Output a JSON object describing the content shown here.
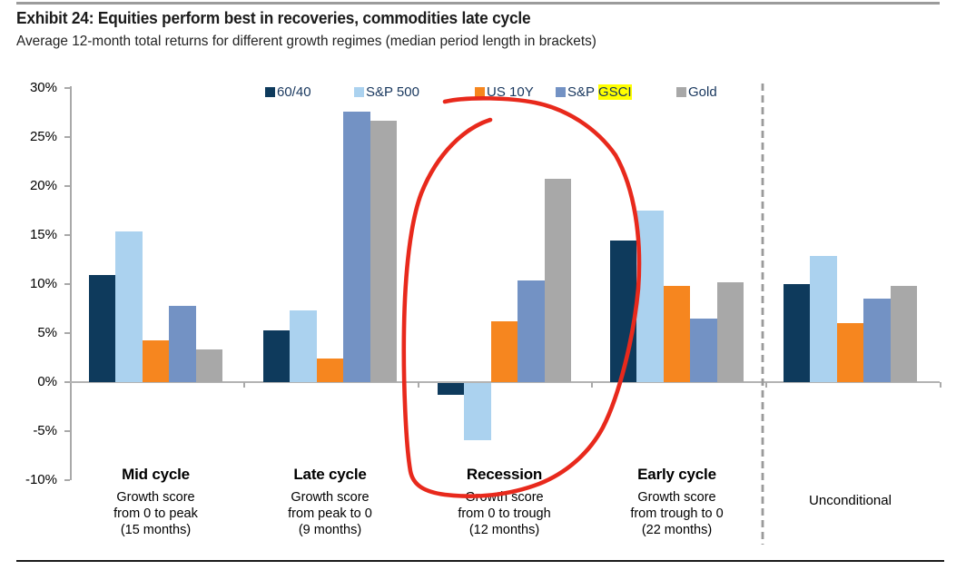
{
  "exhibit": {
    "title": "Exhibit 24: Equities perform best in recoveries, commodities late cycle",
    "subtitle": "Average 12-month total returns for different growth regimes (median period length in brackets)"
  },
  "chart_data": {
    "type": "bar",
    "title": "Exhibit 24: Equities perform best in recoveries, commodities late cycle",
    "subtitle": "Average 12-month total returns for different growth regimes (median period length in brackets)",
    "xlabel": "",
    "ylabel": "",
    "ylim": [
      -10,
      30
    ],
    "grid": false,
    "legend_position": "top",
    "yticks": [
      30,
      25,
      20,
      15,
      10,
      5,
      0,
      -5,
      -10
    ],
    "ytick_labels": [
      "30%",
      "25%",
      "20%",
      "15%",
      "10%",
      "5%",
      "0%",
      "-5%",
      "-10%"
    ],
    "categories": [
      {
        "name": "Mid cycle",
        "sublabels": [
          "Growth score",
          "from 0 to peak",
          "(15 months)"
        ]
      },
      {
        "name": "Late cycle",
        "sublabels": [
          "Growth score",
          "from peak to 0",
          "(9 months)"
        ]
      },
      {
        "name": "Recession",
        "sublabels": [
          "Growth score",
          "from 0 to trough",
          "(12 months)"
        ]
      },
      {
        "name": "Early cycle",
        "sublabels": [
          "Growth score",
          "from trough to 0",
          "(22 months)"
        ]
      },
      {
        "name": "Unconditional",
        "sublabels": []
      }
    ],
    "series": [
      {
        "name": "60/40",
        "color": "#0e3a5c",
        "values": [
          10.9,
          5.3,
          -1.2,
          14.4,
          10.0
        ]
      },
      {
        "name": "S&P 500",
        "color": "#abd2ef",
        "values": [
          15.4,
          7.3,
          -5.8,
          17.5,
          12.9
        ]
      },
      {
        "name": "US 10Y",
        "color": "#f6861f",
        "values": [
          4.3,
          2.4,
          6.2,
          9.8,
          6.0
        ]
      },
      {
        "name": "S&P GSCI",
        "color": "#7392c4",
        "values": [
          7.8,
          27.6,
          10.4,
          6.5,
          8.5
        ],
        "legend_highlight": "GSCI"
      },
      {
        "name": "Gold",
        "color": "#a8a8a8",
        "values": [
          3.3,
          26.7,
          20.7,
          10.2,
          9.8
        ]
      }
    ],
    "annotations": [
      {
        "type": "hand-drawn-circle",
        "color": "#e8291c",
        "target": "Recession group"
      },
      {
        "type": "text-highlight",
        "color": "#ffff00",
        "target": "GSCI legend text"
      }
    ],
    "separator": {
      "style": "dashed",
      "color": "#9a9a9a",
      "between": "Early cycle and Unconditional"
    }
  }
}
